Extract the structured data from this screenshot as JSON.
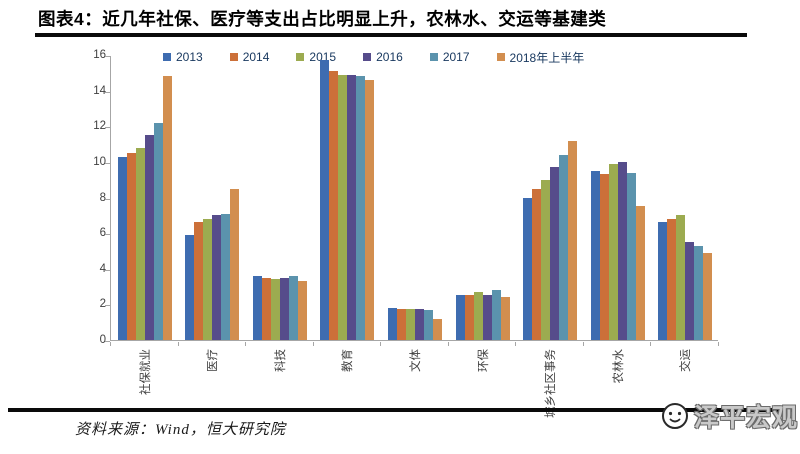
{
  "page": {
    "title": "图表4：近几年社保、医疗等支出占比明显上升，农林水、交运等基建类"
  },
  "footer": {
    "source": "资料来源：Wind，恒大研究院",
    "logo_text": "泽平宏观"
  },
  "chart_data": {
    "type": "bar",
    "title": "",
    "xlabel": "",
    "ylabel": "",
    "categories": [
      "社保就业",
      "医疗",
      "科技",
      "教育",
      "文体",
      "环保",
      "城乡社区事务",
      "农林水",
      "交运"
    ],
    "series": [
      {
        "name": "2013",
        "color": "#3e6cb0",
        "values": [
          10.3,
          5.9,
          3.6,
          15.7,
          1.8,
          2.5,
          8.0,
          9.5,
          6.6
        ]
      },
      {
        "name": "2014",
        "color": "#cc7039",
        "values": [
          10.5,
          6.6,
          3.5,
          15.1,
          1.75,
          2.5,
          8.5,
          9.3,
          6.8
        ]
      },
      {
        "name": "2015",
        "color": "#9cab50",
        "values": [
          10.8,
          6.8,
          3.4,
          14.9,
          1.75,
          2.7,
          9.0,
          9.9,
          7.0
        ]
      },
      {
        "name": "2016",
        "color": "#564c8b",
        "values": [
          11.5,
          7.0,
          3.5,
          14.9,
          1.75,
          2.5,
          9.7,
          10.0,
          5.5
        ]
      },
      {
        "name": "2017",
        "color": "#5b93ad",
        "values": [
          12.2,
          7.1,
          3.6,
          14.8,
          1.7,
          2.8,
          10.4,
          9.4,
          5.3
        ]
      },
      {
        "name": "2018年上半年",
        "color": "#d28e4f",
        "values": [
          14.8,
          8.5,
          3.3,
          14.6,
          1.2,
          2.4,
          11.2,
          7.5,
          4.9
        ]
      }
    ],
    "ylim": [
      0,
      16
    ],
    "ytick_interval": 2,
    "legend_position": "top",
    "grid": false,
    "axis_color": "#a6a6a6"
  }
}
